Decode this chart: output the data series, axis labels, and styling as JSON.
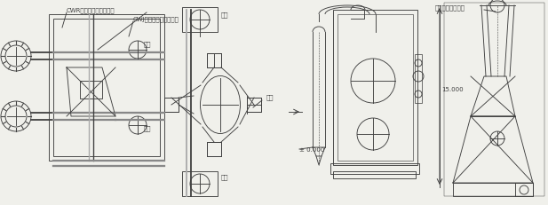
{
  "bg_color": "#f0f0eb",
  "line_color": "#404040",
  "lw": 0.65,
  "fig_width": 6.17,
  "fig_height": 2.31,
  "labels": {
    "cwr": "CWR型不锈钢硅烷燃烧篦",
    "cwj": "CWJ型不锈钢硅烷净化篦",
    "pump1": "水泵",
    "pump2": "水泵",
    "fan1": "风机",
    "fan2": "风机",
    "steel_frame": "钢架",
    "exhaust": "排气口标高接围标",
    "height": "15.000",
    "zero": "± 0.000"
  }
}
